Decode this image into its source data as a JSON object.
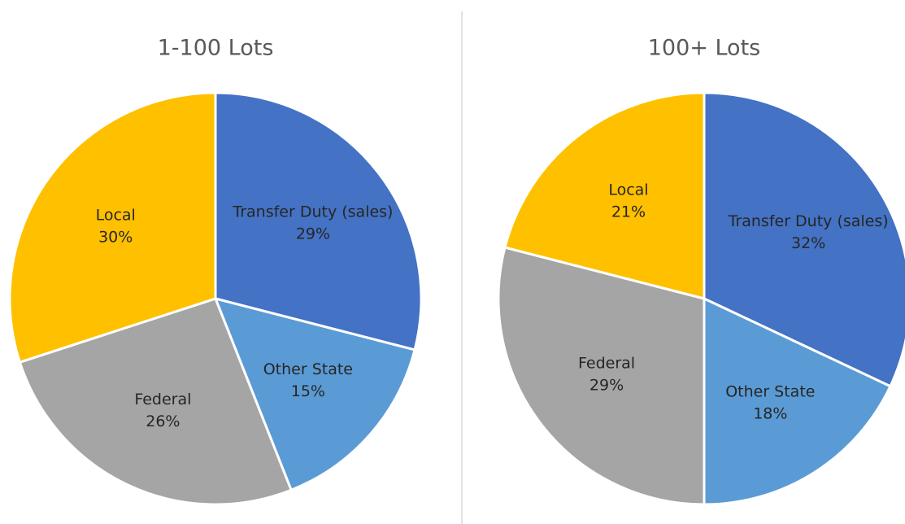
{
  "chart_data": [
    {
      "type": "pie",
      "title": "1-100 Lots",
      "categories": [
        "Transfer Duty (sales)",
        "Other State",
        "Federal",
        "Local"
      ],
      "values": [
        29,
        15,
        26,
        30
      ],
      "value_labels": [
        "29%",
        "15%",
        "26%",
        "30%"
      ],
      "colors": [
        "#4472c4",
        "#5b9bd5",
        "#a5a5a5",
        "#ffc000"
      ]
    },
    {
      "type": "pie",
      "title": "100+ Lots",
      "categories": [
        "Transfer Duty (sales)",
        "Other State",
        "Federal",
        "Local"
      ],
      "values": [
        32,
        18,
        29,
        21
      ],
      "value_labels": [
        "32%",
        "18%",
        "29%",
        "21%"
      ],
      "colors": [
        "#4472c4",
        "#5b9bd5",
        "#a5a5a5",
        "#ffc000"
      ]
    }
  ]
}
